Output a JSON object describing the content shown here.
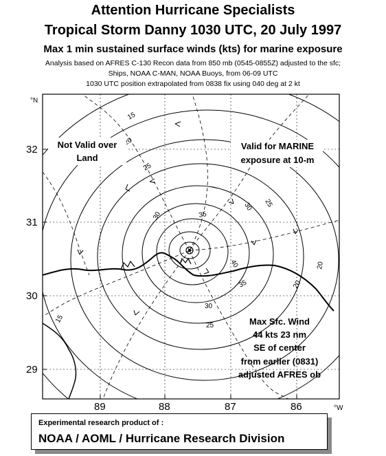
{
  "header": {
    "line1": "Attention Hurricane Specialists",
    "line2": "Tropical Storm Danny  1030 UTC, 20 July 1997",
    "line3": "Max 1 min sustained surface winds (kts) for marine exposure",
    "note1": "Analysis based on  AFRES C-130 Recon data from 850  mb (0545-0855Z) adjusted to the sfc;",
    "note2": "Ships, NOAA C-MAN, NOAA Buoys, from 06-09  UTC",
    "note3": "1030 UTC position extrapolated from 0838 fix using 040 deg at 2 kt"
  },
  "map": {
    "lat_ticks": [
      "32",
      "31",
      "30",
      "29"
    ],
    "lon_ticks": [
      "89",
      "88",
      "87",
      "86"
    ],
    "lat_unit": "°N",
    "lon_unit": "°W",
    "annotations": {
      "not_valid_1": "Not Valid over",
      "not_valid_2": "Land",
      "valid_1": "Valid for MARINE",
      "valid_2": "exposure at 10-m",
      "max_1": "Max Sfc. Wind",
      "max_2": "44 kts 23 nm",
      "max_3": "SE of center",
      "max_4": "from earlier (0831)",
      "max_5": "adjusted  AFRES ob"
    },
    "contour_labels": [
      "15",
      "20",
      "25",
      "30",
      "35",
      "40",
      "30",
      "25",
      "20",
      "35",
      "30",
      "25",
      "20",
      "15"
    ],
    "line_color": "#000000"
  },
  "footer": {
    "line1": "Experimental research product of :",
    "line2": "NOAA / AOML / Hurricane Research Division"
  }
}
